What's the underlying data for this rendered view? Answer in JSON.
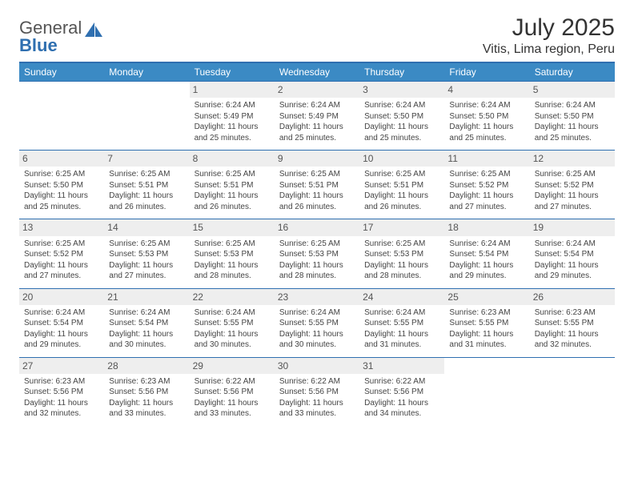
{
  "brand": {
    "name_part1": "General",
    "name_part2": "Blue",
    "icon_color": "#2f6fb0"
  },
  "title": "July 2025",
  "location": "Vitis, Lima region, Peru",
  "colors": {
    "header_bg": "#3b8ac4",
    "header_text": "#ffffff",
    "rule": "#2f6fb0",
    "daybar_bg": "#eeeeee",
    "text": "#444444"
  },
  "weekdays": [
    "Sunday",
    "Monday",
    "Tuesday",
    "Wednesday",
    "Thursday",
    "Friday",
    "Saturday"
  ],
  "weeks": [
    [
      null,
      null,
      {
        "n": "1",
        "sr": "Sunrise: 6:24 AM",
        "ss": "Sunset: 5:49 PM",
        "dl": "Daylight: 11 hours and 25 minutes."
      },
      {
        "n": "2",
        "sr": "Sunrise: 6:24 AM",
        "ss": "Sunset: 5:49 PM",
        "dl": "Daylight: 11 hours and 25 minutes."
      },
      {
        "n": "3",
        "sr": "Sunrise: 6:24 AM",
        "ss": "Sunset: 5:50 PM",
        "dl": "Daylight: 11 hours and 25 minutes."
      },
      {
        "n": "4",
        "sr": "Sunrise: 6:24 AM",
        "ss": "Sunset: 5:50 PM",
        "dl": "Daylight: 11 hours and 25 minutes."
      },
      {
        "n": "5",
        "sr": "Sunrise: 6:24 AM",
        "ss": "Sunset: 5:50 PM",
        "dl": "Daylight: 11 hours and 25 minutes."
      }
    ],
    [
      {
        "n": "6",
        "sr": "Sunrise: 6:25 AM",
        "ss": "Sunset: 5:50 PM",
        "dl": "Daylight: 11 hours and 25 minutes."
      },
      {
        "n": "7",
        "sr": "Sunrise: 6:25 AM",
        "ss": "Sunset: 5:51 PM",
        "dl": "Daylight: 11 hours and 26 minutes."
      },
      {
        "n": "8",
        "sr": "Sunrise: 6:25 AM",
        "ss": "Sunset: 5:51 PM",
        "dl": "Daylight: 11 hours and 26 minutes."
      },
      {
        "n": "9",
        "sr": "Sunrise: 6:25 AM",
        "ss": "Sunset: 5:51 PM",
        "dl": "Daylight: 11 hours and 26 minutes."
      },
      {
        "n": "10",
        "sr": "Sunrise: 6:25 AM",
        "ss": "Sunset: 5:51 PM",
        "dl": "Daylight: 11 hours and 26 minutes."
      },
      {
        "n": "11",
        "sr": "Sunrise: 6:25 AM",
        "ss": "Sunset: 5:52 PM",
        "dl": "Daylight: 11 hours and 27 minutes."
      },
      {
        "n": "12",
        "sr": "Sunrise: 6:25 AM",
        "ss": "Sunset: 5:52 PM",
        "dl": "Daylight: 11 hours and 27 minutes."
      }
    ],
    [
      {
        "n": "13",
        "sr": "Sunrise: 6:25 AM",
        "ss": "Sunset: 5:52 PM",
        "dl": "Daylight: 11 hours and 27 minutes."
      },
      {
        "n": "14",
        "sr": "Sunrise: 6:25 AM",
        "ss": "Sunset: 5:53 PM",
        "dl": "Daylight: 11 hours and 27 minutes."
      },
      {
        "n": "15",
        "sr": "Sunrise: 6:25 AM",
        "ss": "Sunset: 5:53 PM",
        "dl": "Daylight: 11 hours and 28 minutes."
      },
      {
        "n": "16",
        "sr": "Sunrise: 6:25 AM",
        "ss": "Sunset: 5:53 PM",
        "dl": "Daylight: 11 hours and 28 minutes."
      },
      {
        "n": "17",
        "sr": "Sunrise: 6:25 AM",
        "ss": "Sunset: 5:53 PM",
        "dl": "Daylight: 11 hours and 28 minutes."
      },
      {
        "n": "18",
        "sr": "Sunrise: 6:24 AM",
        "ss": "Sunset: 5:54 PM",
        "dl": "Daylight: 11 hours and 29 minutes."
      },
      {
        "n": "19",
        "sr": "Sunrise: 6:24 AM",
        "ss": "Sunset: 5:54 PM",
        "dl": "Daylight: 11 hours and 29 minutes."
      }
    ],
    [
      {
        "n": "20",
        "sr": "Sunrise: 6:24 AM",
        "ss": "Sunset: 5:54 PM",
        "dl": "Daylight: 11 hours and 29 minutes."
      },
      {
        "n": "21",
        "sr": "Sunrise: 6:24 AM",
        "ss": "Sunset: 5:54 PM",
        "dl": "Daylight: 11 hours and 30 minutes."
      },
      {
        "n": "22",
        "sr": "Sunrise: 6:24 AM",
        "ss": "Sunset: 5:55 PM",
        "dl": "Daylight: 11 hours and 30 minutes."
      },
      {
        "n": "23",
        "sr": "Sunrise: 6:24 AM",
        "ss": "Sunset: 5:55 PM",
        "dl": "Daylight: 11 hours and 30 minutes."
      },
      {
        "n": "24",
        "sr": "Sunrise: 6:24 AM",
        "ss": "Sunset: 5:55 PM",
        "dl": "Daylight: 11 hours and 31 minutes."
      },
      {
        "n": "25",
        "sr": "Sunrise: 6:23 AM",
        "ss": "Sunset: 5:55 PM",
        "dl": "Daylight: 11 hours and 31 minutes."
      },
      {
        "n": "26",
        "sr": "Sunrise: 6:23 AM",
        "ss": "Sunset: 5:55 PM",
        "dl": "Daylight: 11 hours and 32 minutes."
      }
    ],
    [
      {
        "n": "27",
        "sr": "Sunrise: 6:23 AM",
        "ss": "Sunset: 5:56 PM",
        "dl": "Daylight: 11 hours and 32 minutes."
      },
      {
        "n": "28",
        "sr": "Sunrise: 6:23 AM",
        "ss": "Sunset: 5:56 PM",
        "dl": "Daylight: 11 hours and 33 minutes."
      },
      {
        "n": "29",
        "sr": "Sunrise: 6:22 AM",
        "ss": "Sunset: 5:56 PM",
        "dl": "Daylight: 11 hours and 33 minutes."
      },
      {
        "n": "30",
        "sr": "Sunrise: 6:22 AM",
        "ss": "Sunset: 5:56 PM",
        "dl": "Daylight: 11 hours and 33 minutes."
      },
      {
        "n": "31",
        "sr": "Sunrise: 6:22 AM",
        "ss": "Sunset: 5:56 PM",
        "dl": "Daylight: 11 hours and 34 minutes."
      },
      null,
      null
    ]
  ]
}
